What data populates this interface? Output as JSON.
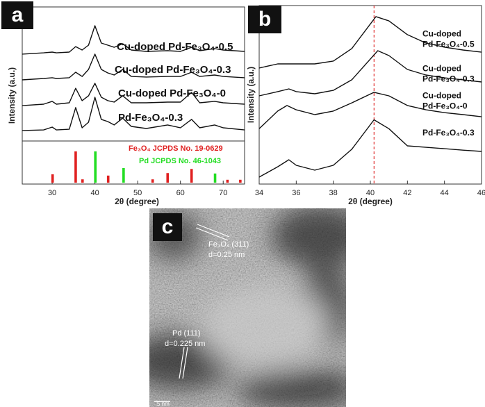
{
  "chart_data": [
    {
      "type": "line",
      "panel_label": "a",
      "xlabel": "2θ (degree)",
      "ylabel": "Intensity (a.u.)",
      "xlim": [
        23,
        75
      ],
      "xticks": [
        30,
        40,
        50,
        60,
        70
      ],
      "ylim": [
        0,
        100
      ],
      "color": "#111111",
      "x": [
        23,
        28,
        30,
        31,
        34,
        35.5,
        37,
        38.5,
        40,
        41.5,
        43,
        44.5,
        46.5,
        48.5,
        52,
        57,
        60,
        62.6,
        64.5,
        68,
        70,
        75
      ],
      "series": [
        {
          "name": "Cu-doped Pd-Fe₃O₄-0.5",
          "values": [
            71.8,
            72.9,
            73.5,
            72.9,
            73.5,
            78.2,
            75.3,
            79.4,
            95.9,
            81.2,
            79.4,
            77.6,
            80.6,
            75.3,
            74.1,
            74.7,
            74.1,
            77.6,
            74.7,
            76.5,
            75.3,
            74.1
          ]
        },
        {
          "name": "Cu-doped Pd-Fe₃O₄-0.3",
          "values": [
            50,
            51.2,
            51.8,
            51.2,
            51.8,
            56.5,
            52.9,
            58.8,
            71.8,
            58.8,
            55.9,
            54.1,
            58.8,
            52.9,
            52.4,
            52.9,
            52.9,
            56.5,
            52.9,
            54.1,
            52.9,
            51.8
          ]
        },
        {
          "name": "Cu-doped Pd-Fe₃O₄-0",
          "values": [
            28.2,
            29.4,
            31.8,
            29.4,
            30.6,
            42.9,
            32.4,
            36.5,
            47.1,
            35.3,
            32.4,
            31.2,
            36.5,
            30.6,
            30.6,
            31.2,
            31.2,
            39.4,
            30.6,
            31.8,
            30.6,
            29.4
          ]
        },
        {
          "name": "Pd-Fe₃O₄-0.3",
          "values": [
            7.1,
            7.6,
            10,
            7.6,
            8.2,
            26.5,
            9.4,
            14.1,
            35.3,
            16.5,
            14.7,
            11.8,
            17.6,
            10.6,
            8.8,
            11.8,
            9.4,
            16.5,
            9.4,
            11.8,
            9.4,
            7.6
          ]
        }
      ],
      "ref_ylim": [
        0,
        100
      ],
      "references": [
        {
          "name": "Fe₃O₄ JCPDS No. 19-0629",
          "color": "#e02020",
          "x": [
            30.1,
            35.5,
            37.1,
            43.1,
            53.5,
            57,
            62.6,
            71,
            74
          ],
          "values": [
            20,
            75,
            8,
            17,
            8,
            23,
            33,
            7,
            7
          ]
        },
        {
          "name": "Pd JCPDS No. 46-1043",
          "color": "#22dd22",
          "x": [
            40.1,
            46.7,
            68.1
          ],
          "values": [
            75,
            35,
            22
          ]
        }
      ]
    },
    {
      "type": "line",
      "panel_label": "b",
      "xlabel": "2θ (degree)",
      "ylabel": "Intensity (a.u.)",
      "xlim": [
        34,
        46
      ],
      "xticks": [
        34,
        36,
        38,
        40,
        42,
        44,
        46
      ],
      "ylim": [
        0,
        100
      ],
      "color": "#111111",
      "vline": {
        "value": 40.2,
        "color": "#e03030"
      },
      "series": [
        {
          "label_lines": [
            "Cu-doped",
            "Pd-Fe₃O₄-0.5"
          ],
          "x": [
            34,
            35,
            36,
            37,
            38,
            39,
            40.3,
            41,
            42,
            43,
            44,
            45,
            46
          ],
          "values": [
            65,
            67.3,
            67.3,
            67.3,
            68.9,
            75.9,
            93.8,
            91.4,
            83.7,
            79,
            76.7,
            75.1,
            73.9
          ]
        },
        {
          "label_lines": [
            "Cu-doped",
            "Pd-Fe₃O₄-0.3"
          ],
          "x": [
            34,
            35,
            35.6,
            36,
            37,
            38,
            39,
            40.4,
            41,
            42,
            43,
            44,
            45,
            46
          ],
          "values": [
            49.4,
            51.8,
            53.3,
            51.8,
            50.6,
            52.5,
            58.4,
            74.7,
            72,
            64.2,
            61.1,
            59.5,
            58.4,
            57.2
          ]
        },
        {
          "label_lines": [
            "Cu-doped",
            "Pd-Fe₃O₄-0"
          ],
          "x": [
            34,
            35,
            35.5,
            36,
            37,
            38,
            39,
            40.2,
            41,
            42,
            43,
            44,
            45,
            46
          ],
          "values": [
            31,
            40.9,
            44,
            41.6,
            38.9,
            40.9,
            45.5,
            51.4,
            49.4,
            44,
            41.6,
            40,
            38.9,
            37.7
          ]
        },
        {
          "label_lines": [
            "Pd-Fe₃O₄-0.3"
          ],
          "x": [
            34,
            35,
            35.6,
            36,
            37,
            38,
            39,
            40.2,
            41,
            42,
            43,
            44,
            45,
            46
          ],
          "values": [
            3.9,
            9.7,
            13.6,
            10.5,
            7.8,
            10.5,
            19.5,
            36,
            31,
            21.4,
            20.6,
            19.8,
            19,
            18.3
          ]
        }
      ]
    }
  ],
  "panel_c": {
    "panel_label": "c",
    "fe_label": "Fe₃O₄ (311)",
    "fe_spacing": "d=0.25 nm",
    "pd_label": "Pd (111)",
    "pd_spacing": "d=0.225 nm",
    "scale_bar": "5 nm"
  }
}
